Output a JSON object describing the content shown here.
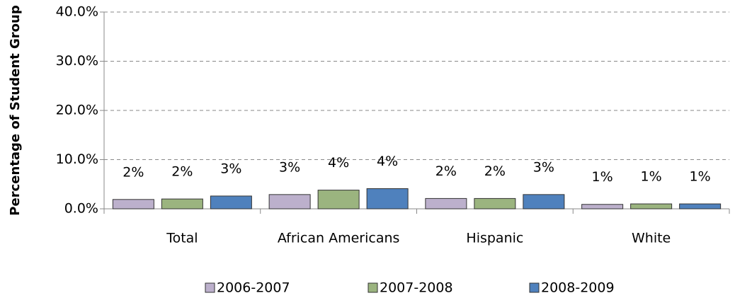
{
  "chart_data": {
    "type": "bar",
    "y_label": "Percentage of Student Group",
    "categories": [
      "Total",
      "African Americans",
      "Hispanic",
      "White"
    ],
    "series": [
      {
        "name": "2006-2007",
        "color": "#bcb0cc",
        "values": [
          1.9,
          2.9,
          2.1,
          0.9
        ],
        "value_labels": [
          "2%",
          "3%",
          "2%",
          "1%"
        ]
      },
      {
        "name": "2007-2008",
        "color": "#9bb47f",
        "values": [
          2.0,
          3.8,
          2.1,
          1.0
        ],
        "value_labels": [
          "2%",
          "4%",
          "2%",
          "1%"
        ]
      },
      {
        "name": "2008-2009",
        "color": "#4f81bd",
        "values": [
          2.6,
          4.1,
          2.9,
          1.0
        ],
        "value_labels": [
          "3%",
          "4%",
          "3%",
          "1%"
        ]
      }
    ],
    "ylim": [
      0,
      40
    ],
    "yticks": [
      {
        "value": 0,
        "label": "0.0%"
      },
      {
        "value": 10,
        "label": "10.0%"
      },
      {
        "value": 20,
        "label": "20.0%"
      },
      {
        "value": 30,
        "label": "30.0%"
      },
      {
        "value": 40,
        "label": "40.0%"
      }
    ],
    "grid": true
  }
}
